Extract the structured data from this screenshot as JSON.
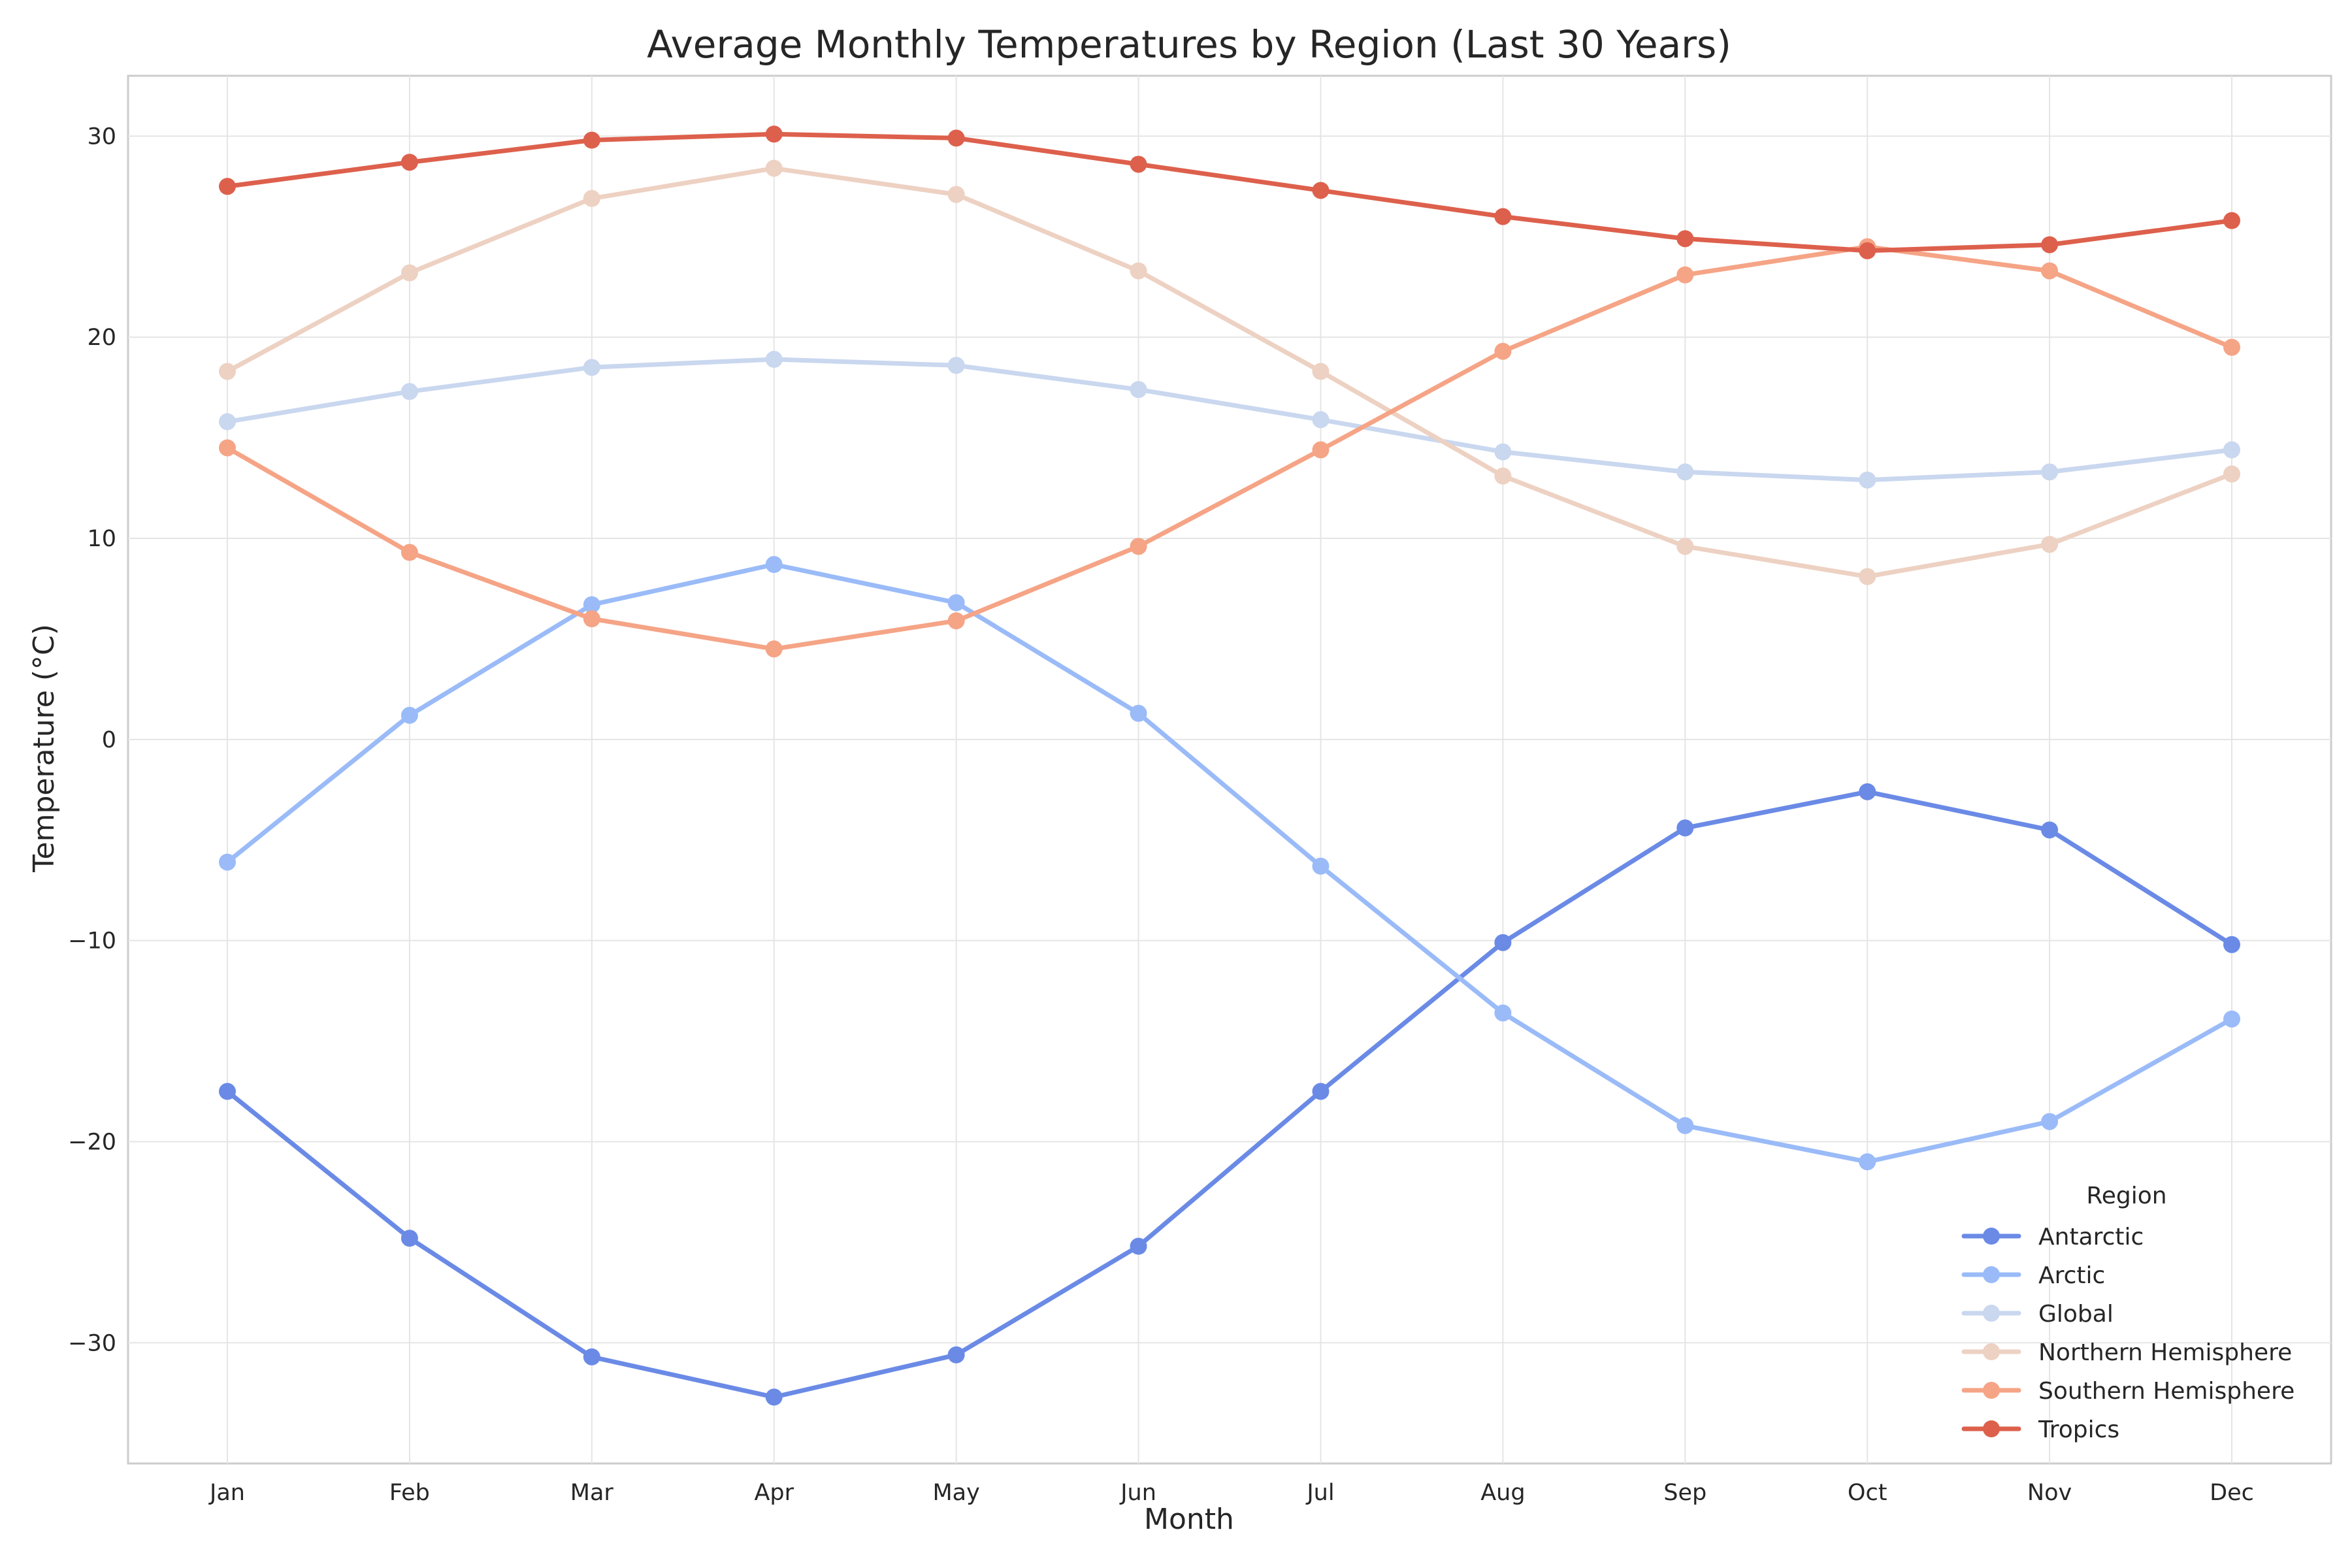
{
  "chart_data": {
    "type": "line",
    "title": "Average Monthly Temperatures by Region (Last 30 Years)",
    "xlabel": "Month",
    "ylabel": "Temperature (°C)",
    "categories": [
      "Jan",
      "Feb",
      "Mar",
      "Apr",
      "May",
      "Jun",
      "Jul",
      "Aug",
      "Sep",
      "Oct",
      "Nov",
      "Dec"
    ],
    "ylim": [
      -36,
      33
    ],
    "yticks": [
      -30,
      -20,
      -10,
      0,
      10,
      20,
      30
    ],
    "grid": true,
    "legend_title": "Region",
    "legend_position": "bottom-right",
    "series": [
      {
        "name": "Antarctic",
        "color": "#6a8ae6",
        "values": [
          -17.5,
          -24.8,
          -30.7,
          -32.7,
          -30.6,
          -25.2,
          -17.5,
          -10.1,
          -4.4,
          -2.6,
          -4.5,
          -10.2
        ]
      },
      {
        "name": "Arctic",
        "color": "#9abbf8",
        "values": [
          -6.1,
          1.2,
          6.7,
          8.7,
          6.8,
          1.3,
          -6.3,
          -13.6,
          -19.2,
          -21.0,
          -19.0,
          -13.9
        ]
      },
      {
        "name": "Global",
        "color": "#c9d7ef",
        "values": [
          15.8,
          17.3,
          18.5,
          18.9,
          18.6,
          17.4,
          15.9,
          14.3,
          13.3,
          12.9,
          13.3,
          14.4
        ]
      },
      {
        "name": "Northern Hemisphere",
        "color": "#edd1c2",
        "values": [
          18.3,
          23.2,
          26.9,
          28.4,
          27.1,
          23.3,
          18.3,
          13.1,
          9.6,
          8.1,
          9.7,
          13.2
        ]
      },
      {
        "name": "Southern Hemisphere",
        "color": "#f5a486",
        "values": [
          14.5,
          9.3,
          6.0,
          4.5,
          5.9,
          9.6,
          14.4,
          19.3,
          23.1,
          24.5,
          23.3,
          19.5
        ]
      },
      {
        "name": "Tropics",
        "color": "#dd604c",
        "values": [
          27.5,
          28.7,
          29.8,
          30.1,
          29.9,
          28.6,
          27.3,
          26.0,
          24.9,
          24.3,
          24.6,
          25.8
        ]
      }
    ]
  }
}
